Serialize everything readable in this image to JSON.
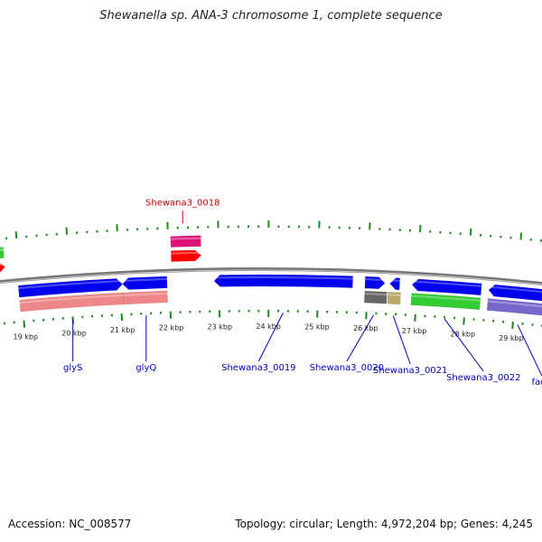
{
  "title": "Shewanella sp. ANA-3 chromosome 1, complete sequence",
  "footer": {
    "accession": "Accession: NC_008577",
    "stats": "Topology: circular; Length: 4,972,204 bp; Genes: 4,245"
  },
  "view": {
    "start_kbp": 18.5,
    "end_kbp": 29.6
  },
  "scale_labels": [
    {
      "kbp": 19,
      "text": "19 kbp"
    },
    {
      "kbp": 20,
      "text": "20 kbp"
    },
    {
      "kbp": 21,
      "text": "21 kbp"
    },
    {
      "kbp": 22,
      "text": "22 kbp"
    },
    {
      "kbp": 23,
      "text": "23 kbp"
    },
    {
      "kbp": 24,
      "text": "24 kbp"
    },
    {
      "kbp": 25,
      "text": "25 kbp"
    },
    {
      "kbp": 26,
      "text": "26 kbp"
    },
    {
      "kbp": 27,
      "text": "27 kbp"
    },
    {
      "kbp": 28,
      "text": "28 kbp"
    },
    {
      "kbp": 29,
      "text": "29 kbp"
    }
  ],
  "tracks": {
    "outer": [
      {
        "start": 18.4,
        "end": 18.72,
        "color": "#33cc33",
        "dir": "none"
      },
      {
        "start": 18.4,
        "end": 18.72,
        "color": "#ff0000",
        "dir": "fwd"
      },
      {
        "start": 22.05,
        "end": 22.65,
        "color": "#dd1177",
        "dir": "none"
      },
      {
        "start": 22.05,
        "end": 22.65,
        "color": "#ff0000",
        "dir": "fwd"
      }
    ],
    "inner": [
      {
        "start": 18.95,
        "end": 21.05,
        "color": "#0000ee",
        "dir": "fwd",
        "row": 1
      },
      {
        "start": 21.05,
        "end": 21.95,
        "color": "#0000ee",
        "dir": "rev",
        "row": 1
      },
      {
        "start": 18.95,
        "end": 21.05,
        "color": "#ee8888",
        "dir": "none",
        "row": 2
      },
      {
        "start": 21.05,
        "end": 21.95,
        "color": "#ee8888",
        "dir": "none",
        "row": 2
      },
      {
        "start": 22.9,
        "end": 25.7,
        "color": "#0000ee",
        "dir": "rev",
        "row": 1
      },
      {
        "start": 25.95,
        "end": 26.35,
        "color": "#0000ee",
        "dir": "fwd",
        "row": 1
      },
      {
        "start": 26.45,
        "end": 26.65,
        "color": "#0000ee",
        "dir": "rev",
        "row": 1
      },
      {
        "start": 25.95,
        "end": 26.4,
        "color": "#666666",
        "dir": "none",
        "row": 2
      },
      {
        "start": 26.42,
        "end": 26.68,
        "color": "#bbaa66",
        "dir": "none",
        "row": 2
      },
      {
        "start": 26.9,
        "end": 28.3,
        "color": "#0000ee",
        "dir": "rev",
        "row": 1
      },
      {
        "start": 26.9,
        "end": 28.3,
        "color": "#33cc33",
        "dir": "none",
        "row": 2
      },
      {
        "start": 28.45,
        "end": 29.6,
        "color": "#0000ee",
        "dir": "rev",
        "row": 1
      },
      {
        "start": 28.45,
        "end": 29.6,
        "color": "#7766cc",
        "dir": "none",
        "row": 2
      }
    ]
  },
  "gene_labels": [
    {
      "name": "Shewana3_0018",
      "kbp": 22.3,
      "color": "#cc0000",
      "side": "outer"
    },
    {
      "name": "glyS",
      "kbp": 20.0,
      "color": "#0000bb",
      "side": "inner",
      "lkbp": 20.0,
      "row": 0
    },
    {
      "name": "glyQ",
      "kbp": 21.5,
      "color": "#0000bb",
      "side": "inner",
      "lkbp": 21.5,
      "row": 0
    },
    {
      "name": "Shewana3_0019",
      "kbp": 24.3,
      "color": "#0000bb",
      "side": "inner",
      "lkbp": 23.8,
      "row": 0
    },
    {
      "name": "Shewana3_0020",
      "kbp": 26.15,
      "color": "#0000bb",
      "side": "inner",
      "lkbp": 25.6,
      "row": 0
    },
    {
      "name": "Shewana3_0021",
      "kbp": 26.55,
      "color": "#0000bb",
      "side": "inner",
      "lkbp": 26.9,
      "row": 1
    },
    {
      "name": "Shewana3_0022",
      "kbp": 27.6,
      "color": "#0000bb",
      "side": "inner",
      "lkbp": 28.4,
      "row": 2
    },
    {
      "name": "fadA",
      "kbp": 29.1,
      "color": "#0000bb",
      "side": "inner",
      "lkbp": 29.45,
      "row": 3
    }
  ]
}
